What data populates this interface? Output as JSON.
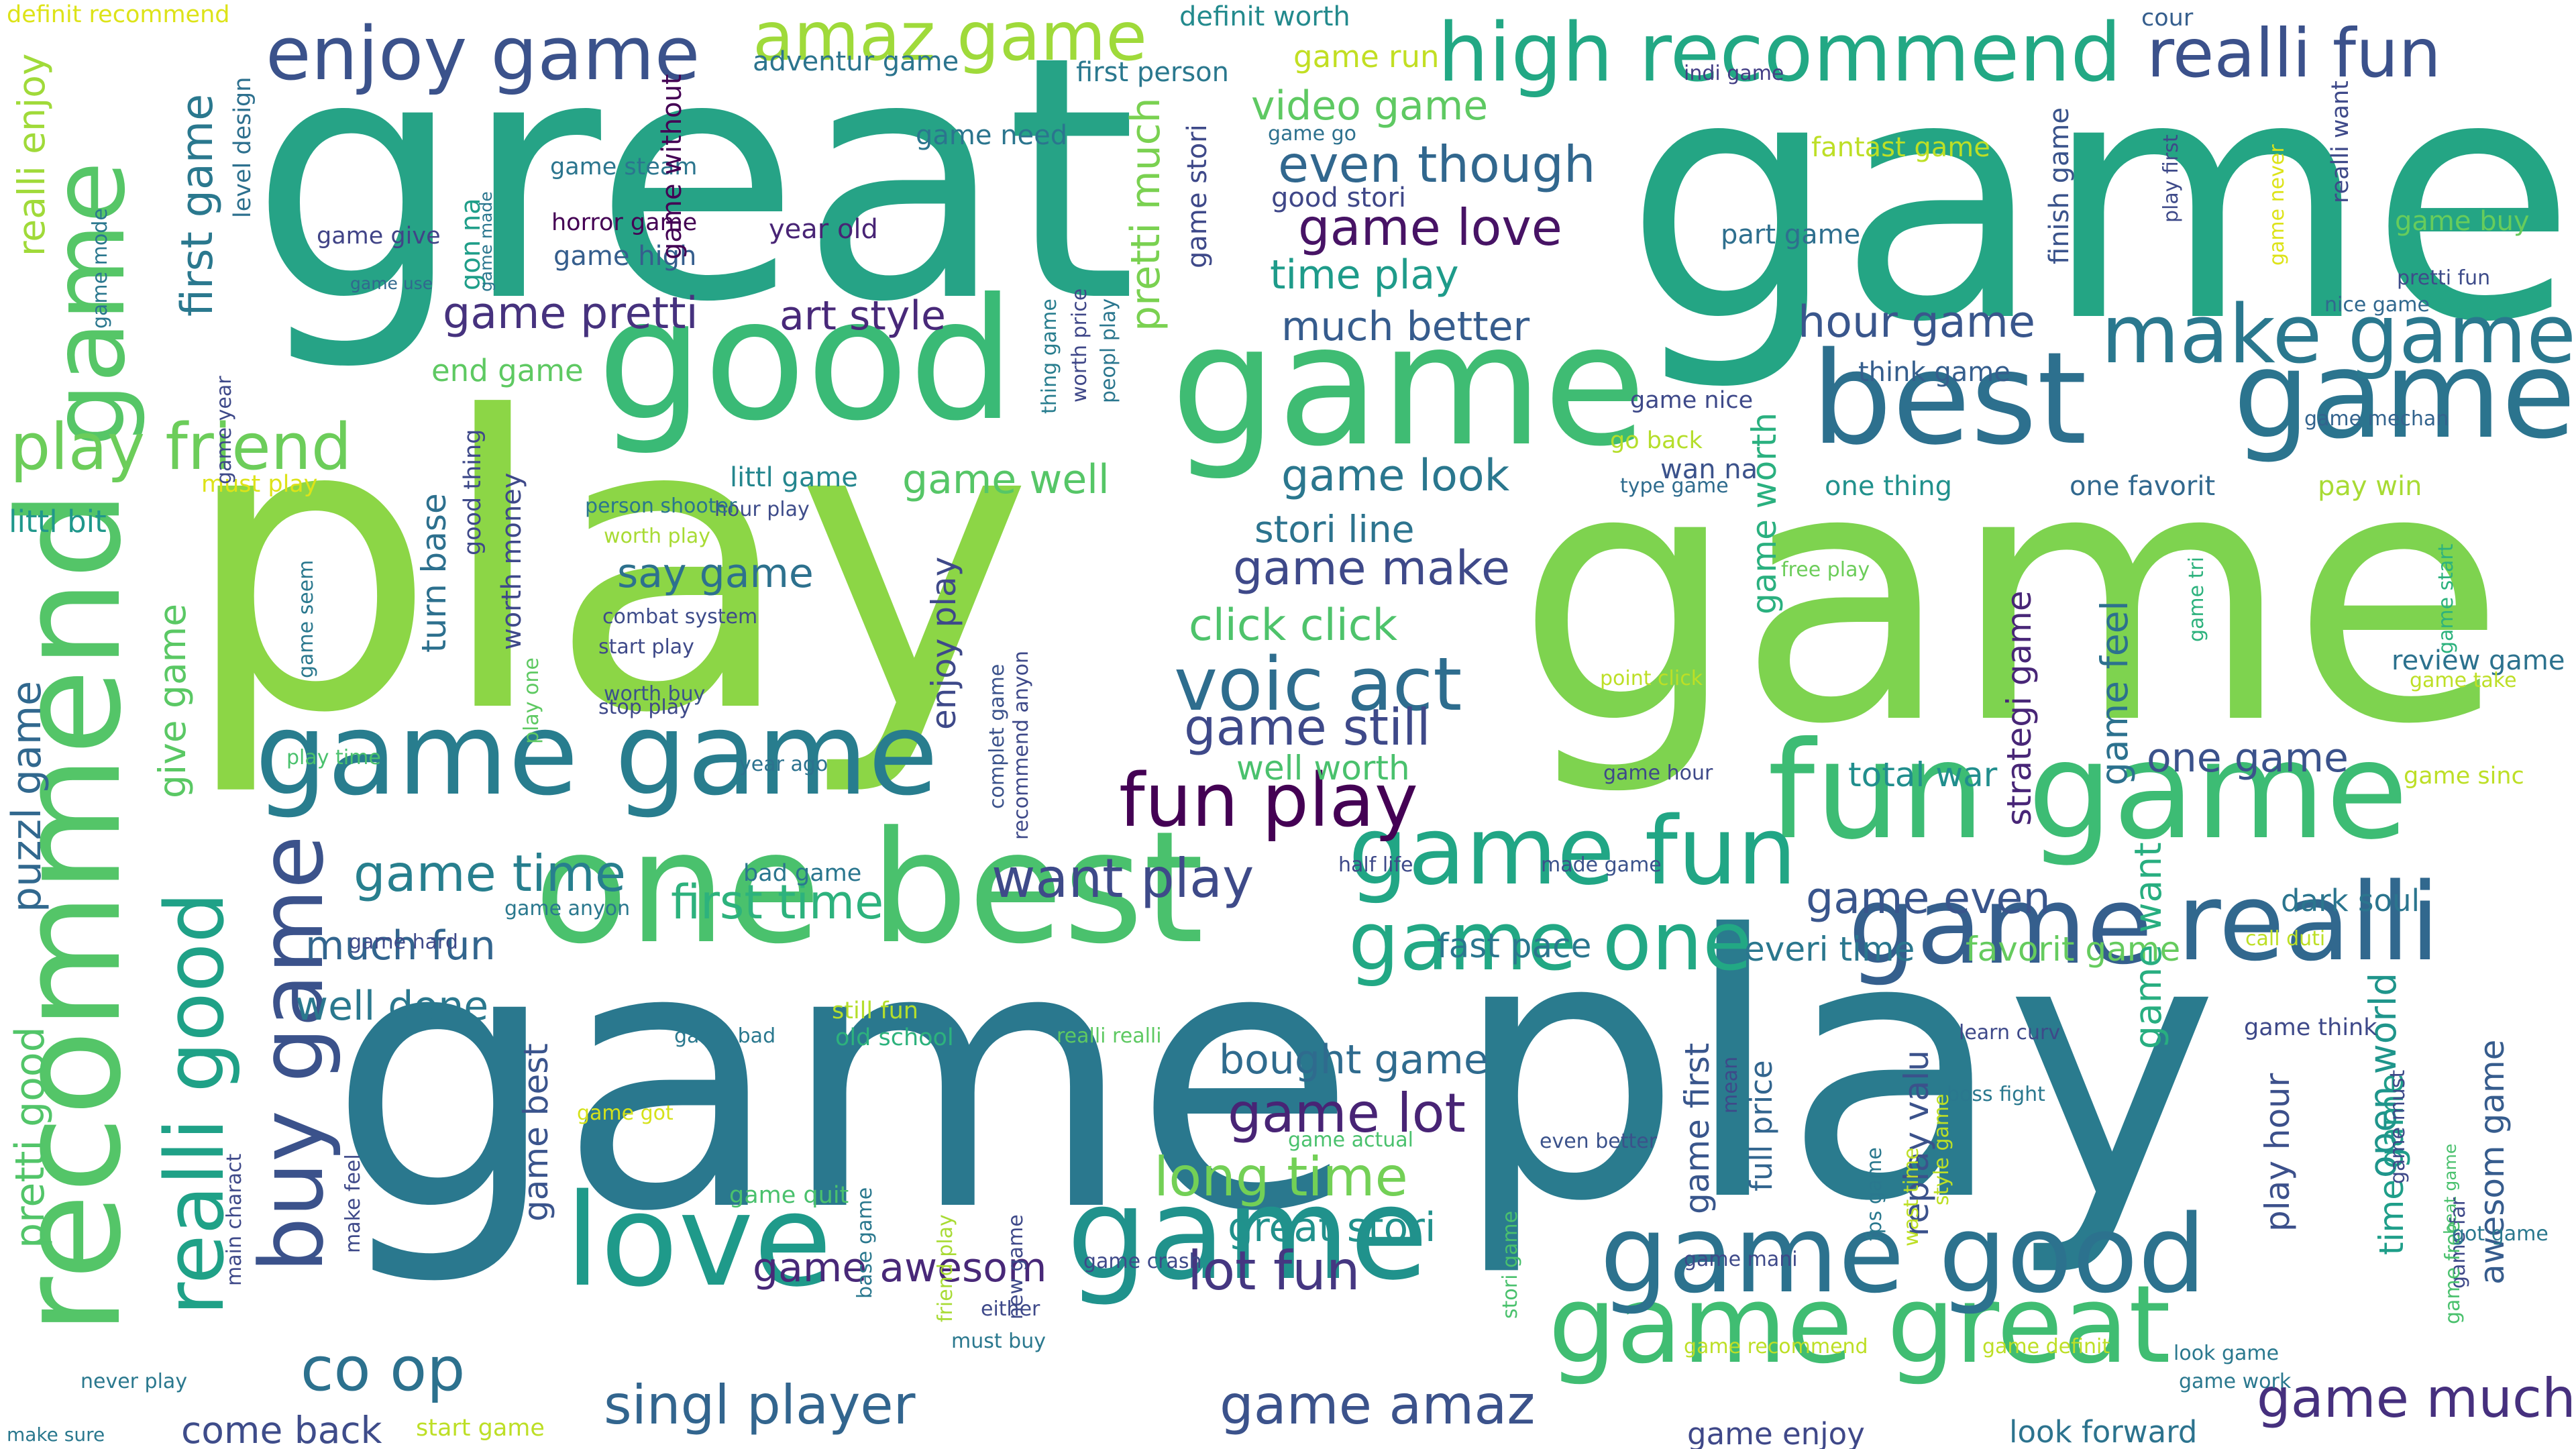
{
  "cloud": {
    "words": [
      {
        "text": "great",
        "color": "#26a386"
      },
      {
        "text": "game",
        "color": "#24a584"
      },
      {
        "text": "play",
        "color": "#8cd646"
      },
      {
        "text": "game",
        "color": "#7ed34f"
      },
      {
        "text": "game",
        "color": "#2a788e"
      },
      {
        "text": "play",
        "color": "#2a7b8e"
      },
      {
        "text": "recommend",
        "color": "#54c568"
      },
      {
        "text": "good",
        "color": "#3aba76"
      },
      {
        "text": "game",
        "color": "#3fbc73"
      },
      {
        "text": "one best",
        "color": "#4ac16d"
      },
      {
        "text": "fun game",
        "color": "#3dbc74"
      },
      {
        "text": "best",
        "color": "#2d708e"
      },
      {
        "text": "game",
        "color": "#2b748e"
      },
      {
        "text": "love",
        "color": "#1f9a8a"
      },
      {
        "text": "game",
        "color": "#20928c"
      },
      {
        "text": "game game",
        "color": "#287d8e"
      },
      {
        "text": "game great",
        "color": "#40bd72"
      },
      {
        "text": "game good",
        "color": "#2c728e"
      },
      {
        "text": "realli",
        "color": "#31688e"
      },
      {
        "text": "game",
        "color": "#355f8d"
      },
      {
        "text": "game",
        "color": "#56c667"
      },
      {
        "text": "buy game",
        "color": "#3b528b"
      },
      {
        "text": "realli good",
        "color": "#1fa187"
      },
      {
        "text": "game fun",
        "color": "#21a685"
      },
      {
        "text": "game one",
        "color": "#22a884"
      },
      {
        "text": "high recommend",
        "color": "#22a884"
      },
      {
        "text": "make game",
        "color": "#2a788e"
      },
      {
        "text": "enjoy game",
        "color": "#3b528b"
      },
      {
        "text": "amaz game",
        "color": "#9fda3a"
      },
      {
        "text": "realli fun",
        "color": "#3b518b"
      },
      {
        "text": "fun play",
        "color": "#440154"
      },
      {
        "text": "play friend",
        "color": "#6ccd5a"
      },
      {
        "text": "co op",
        "color": "#2c718e"
      },
      {
        "text": "singl player",
        "color": "#32658e"
      },
      {
        "text": "voic act",
        "color": "#2e6d8e"
      },
      {
        "text": "lot fun",
        "color": "#453781"
      },
      {
        "text": "game much",
        "color": "#46307e"
      },
      {
        "text": "game amaz",
        "color": "#3b528b"
      },
      {
        "text": "long time",
        "color": "#73d056"
      },
      {
        "text": "want play",
        "color": "#3e4a89"
      },
      {
        "text": "game lot",
        "color": "#482475"
      },
      {
        "text": "game still",
        "color": "#3e4989"
      },
      {
        "text": "game time",
        "color": "#277f8e"
      },
      {
        "text": "first time",
        "color": "#2db27d"
      },
      {
        "text": "game pretti",
        "color": "#46327e"
      },
      {
        "text": "art style",
        "color": "#482979"
      },
      {
        "text": "game love",
        "color": "#471365"
      },
      {
        "text": "even though",
        "color": "#31678e"
      },
      {
        "text": "time play",
        "color": "#1e9b8a"
      },
      {
        "text": "much better",
        "color": "#365c8d"
      },
      {
        "text": "hour game",
        "color": "#39568c"
      },
      {
        "text": "game look",
        "color": "#2a778e"
      },
      {
        "text": "game well",
        "color": "#56c667"
      },
      {
        "text": "game make",
        "color": "#3e4989"
      },
      {
        "text": "click click",
        "color": "#4ec36b"
      },
      {
        "text": "say game",
        "color": "#2d718e"
      },
      {
        "text": "game even",
        "color": "#39558c"
      },
      {
        "text": "one game",
        "color": "#3b528b"
      },
      {
        "text": "game awesom",
        "color": "#482878"
      },
      {
        "text": "great stori",
        "color": "#21918c"
      },
      {
        "text": "bought game",
        "color": "#2f6b8e"
      },
      {
        "text": "much fun",
        "color": "#32658e"
      },
      {
        "text": "well done",
        "color": "#2a788e"
      },
      {
        "text": "come back",
        "color": "#3e4c8a"
      },
      {
        "text": "first game",
        "color": "#2a788e"
      },
      {
        "text": "video game",
        "color": "#5ec962"
      },
      {
        "text": "pretti much",
        "color": "#7ad151"
      },
      {
        "text": "pretti good",
        "color": "#52c569"
      },
      {
        "text": "give game",
        "color": "#5ac864"
      },
      {
        "text": "puzzl game",
        "color": "#31688e"
      },
      {
        "text": "realli enjoy",
        "color": "#a0da39"
      },
      {
        "text": "end game",
        "color": "#5ec962"
      },
      {
        "text": "littl bit",
        "color": "#1f978b"
      },
      {
        "text": "stori line",
        "color": "#2c738e"
      },
      {
        "text": "well worth",
        "color": "#4ac16d"
      },
      {
        "text": "total war",
        "color": "#218e8d"
      },
      {
        "text": "everi time",
        "color": "#2a778e"
      },
      {
        "text": "fast pace",
        "color": "#2a768e"
      },
      {
        "text": "favorit game",
        "color": "#65cb5e"
      },
      {
        "text": "dark soul",
        "color": "#2b758e"
      },
      {
        "text": "game want",
        "color": "#28ae80"
      },
      {
        "text": "time game",
        "color": "#1f9e89"
      },
      {
        "text": "play hour",
        "color": "#3c508b"
      },
      {
        "text": "awesom game",
        "color": "#365c8d"
      },
      {
        "text": "open world",
        "color": "#1f958b"
      },
      {
        "text": "game worth",
        "color": "#2ab07f"
      },
      {
        "text": "strategi game",
        "color": "#482677"
      },
      {
        "text": "game feel",
        "color": "#2c718e"
      },
      {
        "text": "turn base",
        "color": "#2d708e"
      },
      {
        "text": "worth money",
        "color": "#3e4989"
      },
      {
        "text": "game best",
        "color": "#3a548c"
      },
      {
        "text": "replay valu",
        "color": "#3b528b"
      },
      {
        "text": "game first",
        "color": "#39568c"
      },
      {
        "text": "full price",
        "color": "#32658e"
      },
      {
        "text": "game enjoy",
        "color": "#3f4889"
      },
      {
        "text": "look forward",
        "color": "#2c738e"
      },
      {
        "text": "definit worth",
        "color": "#238a8d"
      },
      {
        "text": "adventur game",
        "color": "#2b748e"
      },
      {
        "text": "first person",
        "color": "#2a788e"
      },
      {
        "text": "game run",
        "color": "#c2df23"
      },
      {
        "text": "cour",
        "color": "#355e8d"
      },
      {
        "text": "indi game",
        "color": "#433e85"
      },
      {
        "text": "definit recommend",
        "color": "#dde318"
      },
      {
        "text": "level design",
        "color": "#2d708e"
      },
      {
        "text": "game need",
        "color": "#2b758e"
      },
      {
        "text": "game go",
        "color": "#2d718e"
      },
      {
        "text": "fantast game",
        "color": "#bddf26"
      },
      {
        "text": "good stori",
        "color": "#3f4788"
      },
      {
        "text": "game steam",
        "color": "#2b758e"
      },
      {
        "text": "horror game",
        "color": "#440154"
      },
      {
        "text": "year old",
        "color": "#482475"
      },
      {
        "text": "game give",
        "color": "#414487"
      },
      {
        "text": "game mode",
        "color": "#2a778e"
      },
      {
        "text": "game use",
        "color": "#31688e"
      },
      {
        "text": "game high",
        "color": "#355e8d"
      },
      {
        "text": "gon na",
        "color": "#1f9e89"
      },
      {
        "text": "game made",
        "color": "#2a768e"
      },
      {
        "text": "game without",
        "color": "#440154"
      },
      {
        "text": "part game",
        "color": "#2e6f8e"
      },
      {
        "text": "game buy",
        "color": "#67cc5c"
      },
      {
        "text": "nice game",
        "color": "#31688e"
      },
      {
        "text": "game never",
        "color": "#dde318"
      },
      {
        "text": "play first",
        "color": "#3e4a89"
      },
      {
        "text": "pretti fun",
        "color": "#3e4c8a"
      },
      {
        "text": "realli want",
        "color": "#3e4989"
      },
      {
        "text": "game mechan",
        "color": "#33638d"
      },
      {
        "text": "pay win",
        "color": "#a8db34"
      },
      {
        "text": "one favorit",
        "color": "#31688e"
      },
      {
        "text": "one thing",
        "color": "#21918c"
      },
      {
        "text": "type game",
        "color": "#2f6c8e"
      },
      {
        "text": "wan na",
        "color": "#3b528b"
      },
      {
        "text": "go back",
        "color": "#b5de2b"
      },
      {
        "text": "game nice",
        "color": "#3e4989"
      },
      {
        "text": "think game",
        "color": "#355e8d"
      },
      {
        "text": "finish game",
        "color": "#3a538b"
      },
      {
        "text": "game stori",
        "color": "#3e4989"
      },
      {
        "text": "thing game",
        "color": "#287d8e"
      },
      {
        "text": "worth price",
        "color": "#3f4788"
      },
      {
        "text": "peopl play",
        "color": "#2a768e"
      },
      {
        "text": "littl game",
        "color": "#24868e"
      },
      {
        "text": "hour play",
        "color": "#3e4c8a"
      },
      {
        "text": "must play",
        "color": "#dde318"
      },
      {
        "text": "game year",
        "color": "#3e4989"
      },
      {
        "text": "person shooter",
        "color": "#2a768e"
      },
      {
        "text": "worth play",
        "color": "#a8db34"
      },
      {
        "text": "play one",
        "color": "#5ec962"
      },
      {
        "text": "good thing",
        "color": "#3e4989"
      },
      {
        "text": "combat system",
        "color": "#3e4c8a"
      },
      {
        "text": "start play",
        "color": "#3e4989"
      },
      {
        "text": "worth buy",
        "color": "#3b528b"
      },
      {
        "text": "stop play",
        "color": "#3e4989"
      },
      {
        "text": "game seem",
        "color": "#2a788e"
      },
      {
        "text": "play time",
        "color": "#4ac16d"
      },
      {
        "text": "year ago",
        "color": "#2c728e"
      },
      {
        "text": "complet game",
        "color": "#3b528b"
      },
      {
        "text": "recommend anyon",
        "color": "#3e4989"
      },
      {
        "text": "enjoy play",
        "color": "#3e4989"
      },
      {
        "text": "free play",
        "color": "#6ccd5a"
      },
      {
        "text": "game tri",
        "color": "#2db27d"
      },
      {
        "text": "game start",
        "color": "#2db27d"
      },
      {
        "text": "review game",
        "color": "#2c728e"
      },
      {
        "text": "game take",
        "color": "#bddf26"
      },
      {
        "text": "point click",
        "color": "#bddf26"
      },
      {
        "text": "game hour",
        "color": "#3e4989"
      },
      {
        "text": "game sinc",
        "color": "#bddf26"
      },
      {
        "text": "bad game",
        "color": "#2a768e"
      },
      {
        "text": "game anyon",
        "color": "#2a788e"
      },
      {
        "text": "half life",
        "color": "#3e4989"
      },
      {
        "text": "made game",
        "color": "#3b528b"
      },
      {
        "text": "call duti",
        "color": "#bddf26"
      },
      {
        "text": "game hard",
        "color": "#3e4989"
      },
      {
        "text": "still fun",
        "color": "#b5de2b"
      },
      {
        "text": "game bad",
        "color": "#2a788e"
      },
      {
        "text": "old school",
        "color": "#2db27d"
      },
      {
        "text": "realli realli",
        "color": "#5ec962"
      },
      {
        "text": "learn curv",
        "color": "#3e4989"
      },
      {
        "text": "game think",
        "color": "#3e4989"
      },
      {
        "text": "game got",
        "color": "#d5e21a"
      },
      {
        "text": "game quit",
        "color": "#4ac16d"
      },
      {
        "text": "base game",
        "color": "#2a788e"
      },
      {
        "text": "friend play",
        "color": "#a8db34"
      },
      {
        "text": "new game",
        "color": "#3e4989"
      },
      {
        "text": "game actual",
        "color": "#4ac16d"
      },
      {
        "text": "even better",
        "color": "#3b528b"
      },
      {
        "text": "mean",
        "color": "#3e4989"
      },
      {
        "text": "fps game",
        "color": "#2a788e"
      },
      {
        "text": "wast time",
        "color": "#bddf26"
      },
      {
        "text": "style game",
        "color": "#bddf26"
      },
      {
        "text": "boss fight",
        "color": "#2a788e"
      },
      {
        "text": "game must",
        "color": "#3e4989"
      },
      {
        "text": "beat game",
        "color": "#4ac16d"
      },
      {
        "text": "game far",
        "color": "#3e4989"
      },
      {
        "text": "game free",
        "color": "#4ac16d"
      },
      {
        "text": "got game",
        "color": "#2a788e"
      },
      {
        "text": "main charact",
        "color": "#3e4989"
      },
      {
        "text": "make feel",
        "color": "#3e4989"
      },
      {
        "text": "game crash",
        "color": "#3e4989"
      },
      {
        "text": "either",
        "color": "#3e4989"
      },
      {
        "text": "must buy",
        "color": "#2a788e"
      },
      {
        "text": "game mani",
        "color": "#3e4989"
      },
      {
        "text": "stori game",
        "color": "#4ac16d"
      },
      {
        "text": "game recommend",
        "color": "#bddf26"
      },
      {
        "text": "game definit",
        "color": "#bddf26"
      },
      {
        "text": "look game",
        "color": "#2a788e"
      },
      {
        "text": "game work",
        "color": "#2a788e"
      },
      {
        "text": "never play",
        "color": "#2a788e"
      },
      {
        "text": "start game",
        "color": "#bddf26"
      },
      {
        "text": "make sure",
        "color": "#2a788e"
      }
    ]
  }
}
